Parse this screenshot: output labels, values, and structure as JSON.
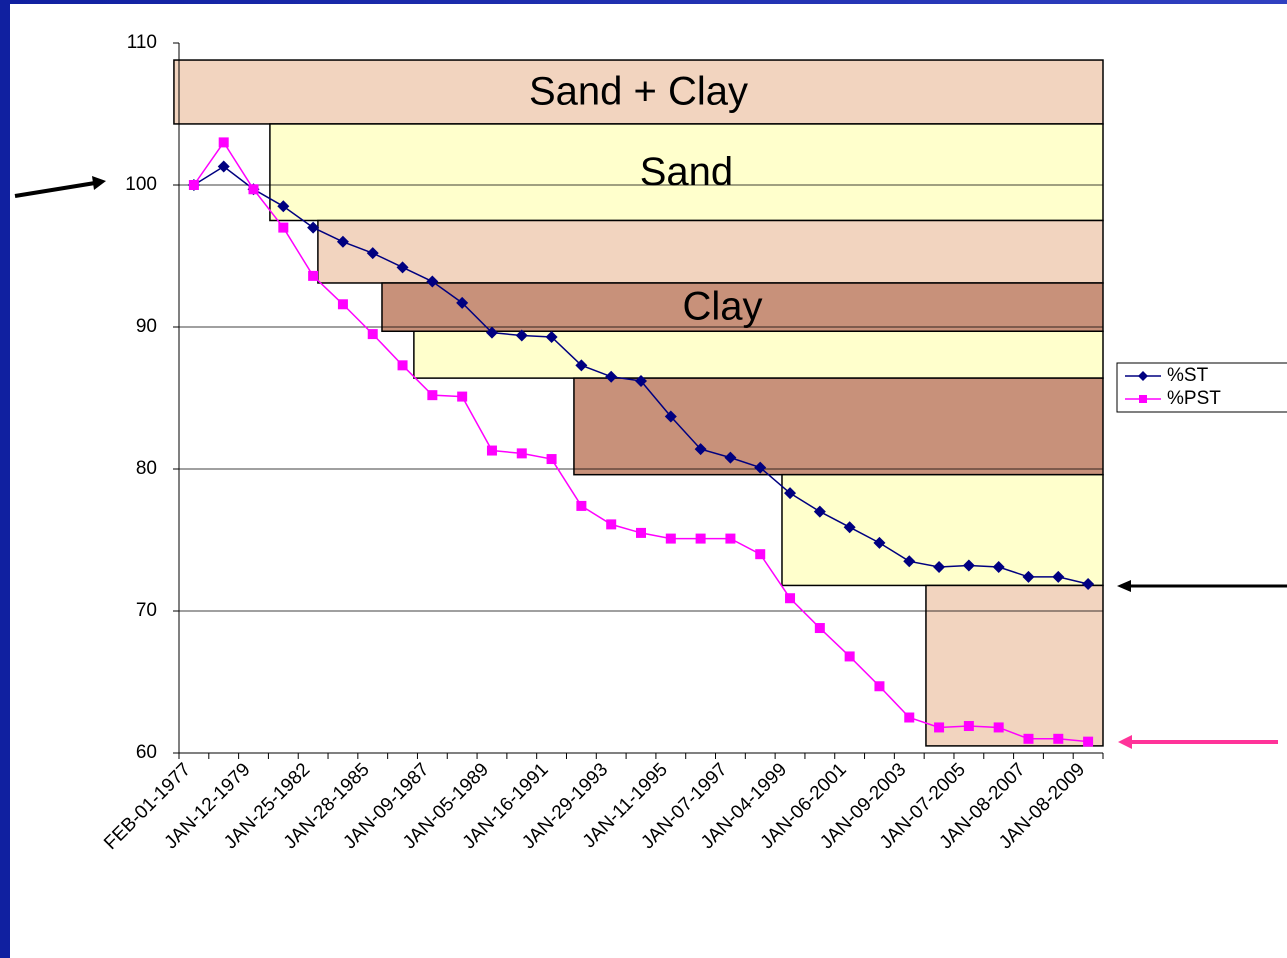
{
  "chart_data": {
    "type": "line",
    "categories": [
      "FEB-01-1977",
      null,
      "JAN-12-1979",
      null,
      "JAN-25-1982",
      null,
      "JAN-28-1985",
      null,
      "JAN-09-1987",
      null,
      "JAN-05-1989",
      null,
      "JAN-16-1991",
      null,
      "JAN-29-1993",
      null,
      "JAN-11-1995",
      null,
      "JAN-07-1997",
      null,
      "JAN-04-1999",
      null,
      "JAN-06-2001",
      null,
      "JAN-09-2003",
      null,
      "JAN-07-2005",
      null,
      "JAN-08-2007",
      null,
      "JAN-08-2009"
    ],
    "series": [
      {
        "name": "%ST",
        "color": "#000080",
        "marker": "diamond",
        "values": [
          100,
          101.3,
          99.7,
          98.5,
          97,
          96,
          95.2,
          94.2,
          93.2,
          91.7,
          89.6,
          89.4,
          89.3,
          87.3,
          86.5,
          86.2,
          83.7,
          81.4,
          80.8,
          80.1,
          78.3,
          77,
          75.9,
          74.8,
          73.5,
          73.1,
          73.2,
          73.1,
          72.4,
          72.4,
          71.9
        ]
      },
      {
        "name": "%PST",
        "color": "#ff00ff",
        "marker": "square",
        "values": [
          100,
          103,
          99.7,
          97,
          93.6,
          91.6,
          89.5,
          87.3,
          85.2,
          85.1,
          81.3,
          81.1,
          80.7,
          77.4,
          76.1,
          75.5,
          75.1,
          75.1,
          75.1,
          74,
          70.9,
          68.8,
          66.8,
          64.7,
          62.5,
          61.8,
          61.9,
          61.8,
          61,
          61,
          60.8
        ]
      }
    ],
    "ylim": [
      60,
      110
    ],
    "yticks": [
      60,
      70,
      80,
      90,
      100,
      110
    ],
    "grid": true,
    "legend": "right",
    "bands": [
      {
        "label": "Sand + Clay",
        "x0": -0.67,
        "y0": 104.3,
        "y1": 108.8,
        "color": "#f2d4bf"
      },
      {
        "label": "Sand",
        "x0": 2.55,
        "y0": 97.5,
        "y1": 104.3,
        "color": "#ffffcc"
      },
      {
        "x0": 4.16,
        "y0": 93.1,
        "y1": 97.5,
        "color": "#f2d4bf"
      },
      {
        "label": "Clay",
        "x0": 6.31,
        "y0": 89.7,
        "y1": 93.1,
        "color": "#c8917a"
      },
      {
        "x0": 7.38,
        "y0": 86.4,
        "y1": 89.7,
        "color": "#ffffcc"
      },
      {
        "x0": 12.75,
        "y0": 79.6,
        "y1": 86.4,
        "color": "#c8917a"
      },
      {
        "x0": 19.73,
        "y0": 71.8,
        "y1": 79.6,
        "color": "#ffffcc"
      },
      {
        "x0": 24.56,
        "y0": 60.5,
        "y1": 71.8,
        "color": "#f2d4bf"
      }
    ]
  }
}
